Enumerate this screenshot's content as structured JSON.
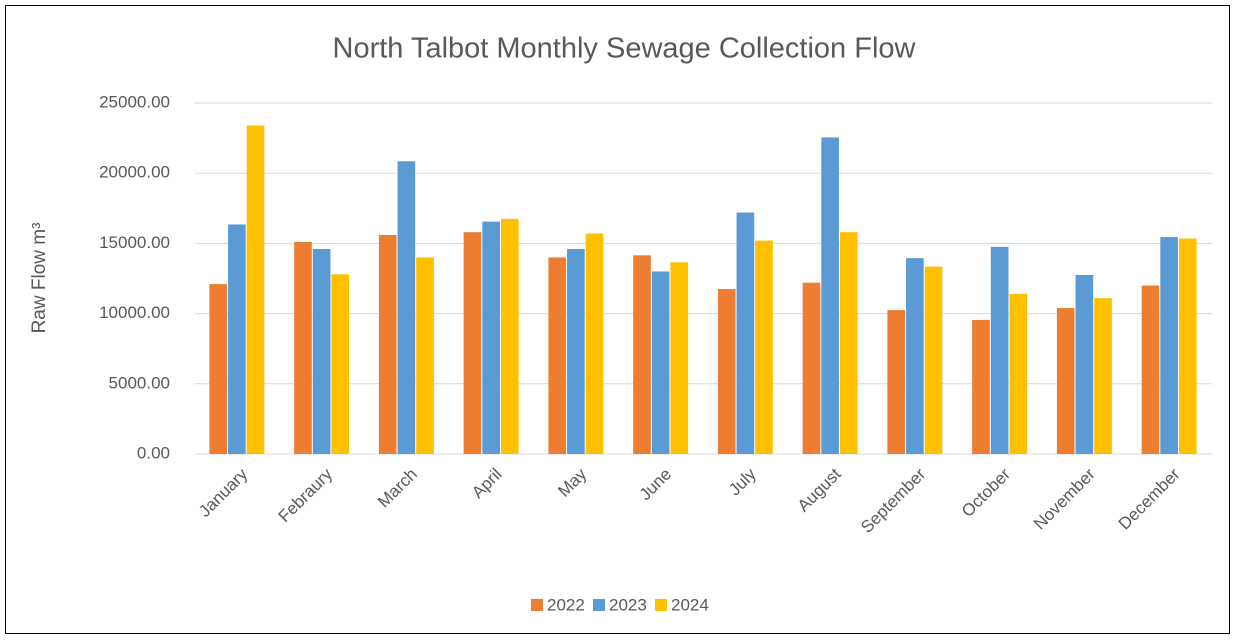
{
  "chart_data": {
    "type": "bar",
    "title": "North Talbot Monthly Sewage Collection Flow",
    "y_label": "Raw Flow m³",
    "categories": [
      "January",
      "Febraury",
      "March",
      "April",
      "May",
      "June",
      "July",
      "August",
      "September",
      "October",
      "November",
      "December"
    ],
    "series": [
      {
        "name": "2022",
        "color": "#ed7d31",
        "values": [
          12100,
          15100,
          15600,
          15800,
          14000,
          14150,
          11750,
          12200,
          10250,
          9550,
          10400,
          12000
        ]
      },
      {
        "name": "2023",
        "color": "#5b9bd5",
        "values": [
          16350,
          14600,
          20850,
          16550,
          14600,
          13000,
          17200,
          22550,
          13950,
          14750,
          12750,
          15450
        ]
      },
      {
        "name": "2024",
        "color": "#ffc000",
        "values": [
          23400,
          12800,
          14000,
          16750,
          15700,
          13650,
          15200,
          15800,
          13350,
          11400,
          11100,
          15350
        ]
      }
    ],
    "ylim": [
      0,
      25000
    ],
    "yticks": [
      {
        "value": 0,
        "label": "0.00"
      },
      {
        "value": 5000,
        "label": "5000.00"
      },
      {
        "value": 10000,
        "label": "10000.00"
      },
      {
        "value": 15000,
        "label": "15000.00"
      },
      {
        "value": 20000,
        "label": "20000.00"
      },
      {
        "value": 25000,
        "label": "25000.00"
      }
    ],
    "grid": true,
    "legend": "bottom"
  }
}
